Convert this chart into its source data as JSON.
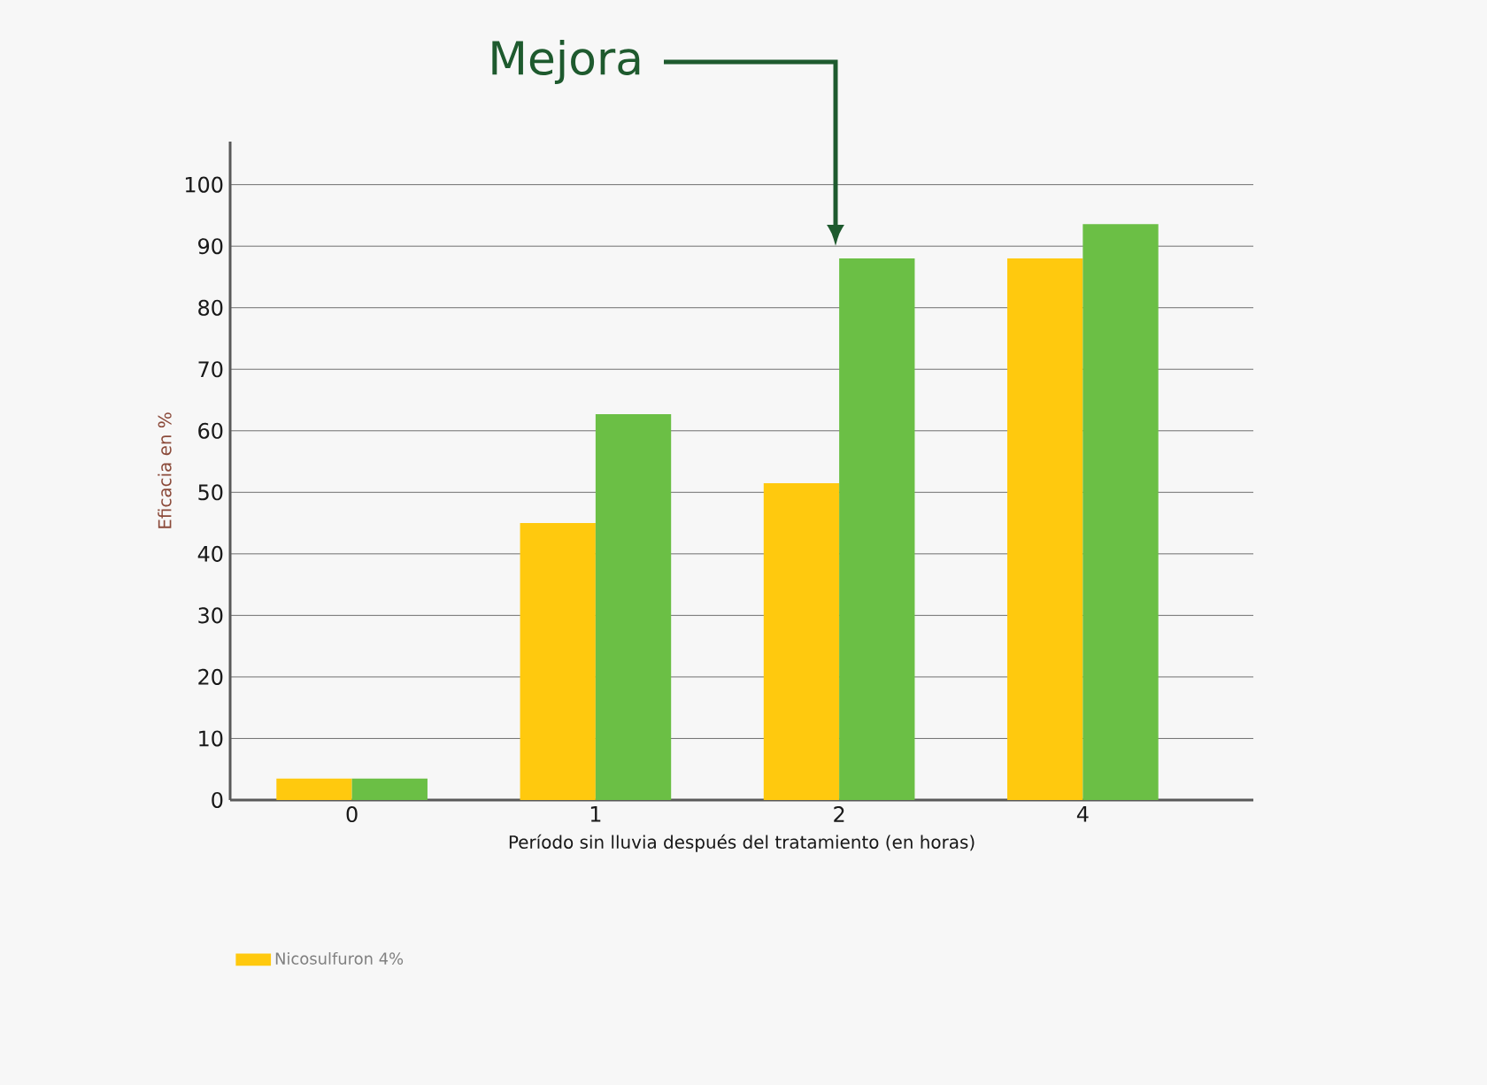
{
  "chart_data": {
    "type": "bar",
    "categories": [
      "0",
      "1",
      "2",
      "4"
    ],
    "xlabel": "Período sin lluvia después del tratamiento (en horas)",
    "ylabel": "Eficacia en %",
    "series": [
      {
        "name": "Nicosulfuron 4%",
        "color": "#ffc90e",
        "values": [
          3.5,
          45,
          51.5,
          88
        ]
      },
      {
        "color": "#6bbf45",
        "values": [
          3.5,
          62.7,
          88,
          93.6
        ]
      }
    ],
    "ylim": [
      0,
      107
    ],
    "yticks": [
      0,
      10,
      20,
      30,
      40,
      50,
      60,
      70,
      80,
      90,
      100
    ],
    "grid": "y",
    "legend": "bottom left",
    "annotations": [
      "Mejora"
    ]
  }
}
